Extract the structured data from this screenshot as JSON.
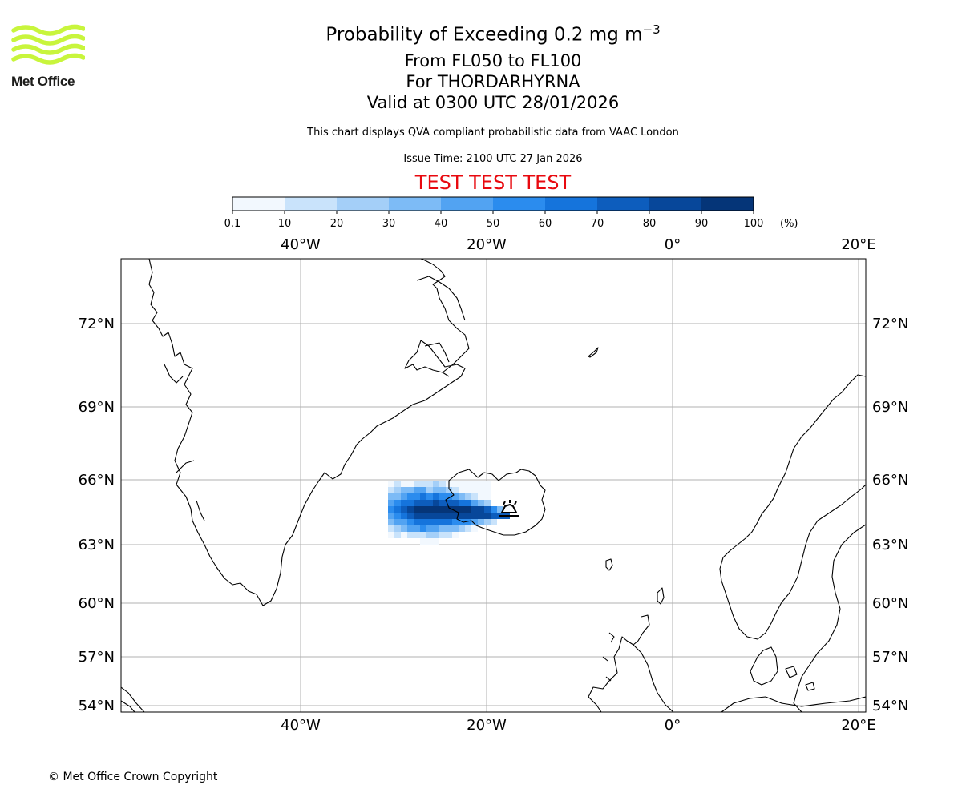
{
  "logo": {
    "text": "Met Office",
    "color": "#c8f53c"
  },
  "title": {
    "main": "Probability of Exceeding 0.2 mg m",
    "main_exp": "−3",
    "levels": "From FL050 to FL100",
    "volcano": "For THORDARHYRNA",
    "valid": "Valid at 0300 UTC 28/01/2026",
    "note": "This chart displays QVA compliant probabilistic data from VAAC London",
    "issue": "Issue Time: 2100 UTC 27 Jan 2026",
    "test": "TEST TEST TEST"
  },
  "colorbar": {
    "labels": [
      "0.1",
      "10",
      "20",
      "30",
      "40",
      "50",
      "60",
      "70",
      "80",
      "90",
      "100"
    ],
    "unit": "(%)",
    "colors": [
      "#f2f8fe",
      "#c9e3fb",
      "#a4cff8",
      "#7dbbf6",
      "#52a3f2",
      "#2b8cee",
      "#1574dc",
      "#0d5dbd",
      "#07479a",
      "#053578"
    ]
  },
  "map": {
    "lon_labels": [
      "40°W",
      "20°W",
      "0°",
      "20°E"
    ],
    "lon_values": [
      -40,
      -20,
      0,
      20
    ],
    "lat_labels": [
      "72°N",
      "69°N",
      "66°N",
      "63°N",
      "60°N",
      "57°N",
      "54°N"
    ],
    "lat_values": [
      72,
      69,
      66,
      63,
      60,
      57,
      54
    ],
    "volcano_symbol": "volcano-icon"
  },
  "copyright": "© Met Office Crown Copyright"
}
